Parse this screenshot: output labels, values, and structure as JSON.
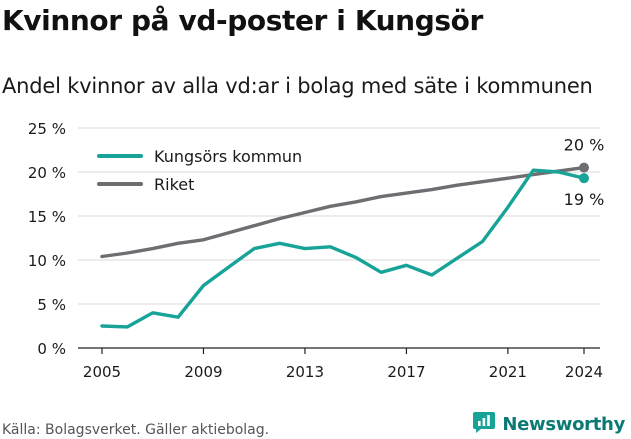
{
  "header": {
    "title": "Kvinnor på vd-poster i Kungsör",
    "subtitle": "Andel kvinnor av alla vd:ar i bolag med säte i kommunen"
  },
  "footer": {
    "source": "Källa: Bolagsverket. Gäller aktiebolag.",
    "brand": "Newsworthy",
    "brand_icon": "newsworthy-logo-icon"
  },
  "colors": {
    "kungsor": "#17a397",
    "riket": "#6e6e72",
    "grid": "#d9d9d9",
    "axis": "#222222",
    "text": "#1a1a1a"
  },
  "chart_data": {
    "type": "line",
    "title": "Kvinnor på vd-poster i Kungsör",
    "subtitle": "Andel kvinnor av alla vd:ar i bolag med säte i kommunen",
    "xlabel": "",
    "ylabel": "",
    "x": [
      2005,
      2006,
      2007,
      2008,
      2009,
      2010,
      2011,
      2012,
      2013,
      2014,
      2015,
      2016,
      2017,
      2018,
      2019,
      2020,
      2021,
      2022,
      2023,
      2024
    ],
    "x_ticks": [
      "2005",
      "2009",
      "2013",
      "2017",
      "2021",
      "2024"
    ],
    "x_tick_values": [
      2005,
      2009,
      2013,
      2017,
      2021,
      2024
    ],
    "ylim": [
      0,
      25
    ],
    "y_ticks": [
      "0 %",
      "5 %",
      "10 %",
      "15 %",
      "20 %",
      "25 %"
    ],
    "y_tick_values": [
      0,
      5,
      10,
      15,
      20,
      25
    ],
    "grid": "horizontal",
    "legend": "top-left",
    "series": [
      {
        "name": "Kungsörs kommun",
        "color": "#17a397",
        "values": [
          2.5,
          2.4,
          4.0,
          3.5,
          7.1,
          9.2,
          11.3,
          11.9,
          11.3,
          11.5,
          10.3,
          8.6,
          9.4,
          8.3,
          10.2,
          12.1,
          16.0,
          20.2,
          20.0,
          19.3
        ],
        "end_label": "19 %"
      },
      {
        "name": "Riket",
        "color": "#6e6e72",
        "values": [
          10.4,
          10.8,
          11.3,
          11.9,
          12.3,
          13.1,
          13.9,
          14.7,
          15.4,
          16.1,
          16.6,
          17.2,
          17.6,
          18.0,
          18.5,
          18.9,
          19.3,
          19.7,
          20.1,
          20.5
        ],
        "end_label": "20 %"
      }
    ]
  }
}
